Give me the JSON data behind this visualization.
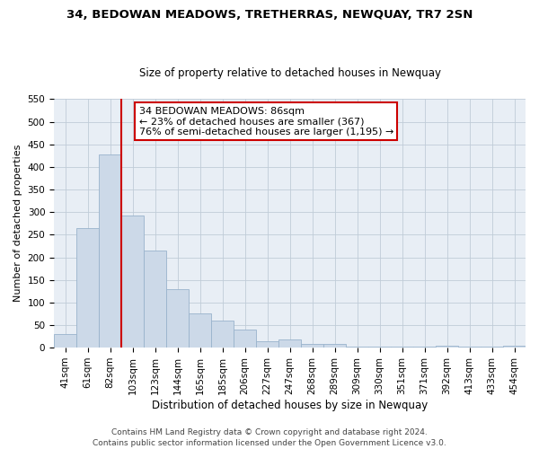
{
  "title": "34, BEDOWAN MEADOWS, TRETHERRAS, NEWQUAY, TR7 2SN",
  "subtitle": "Size of property relative to detached houses in Newquay",
  "xlabel": "Distribution of detached houses by size in Newquay",
  "ylabel": "Number of detached properties",
  "bar_labels": [
    "41sqm",
    "61sqm",
    "82sqm",
    "103sqm",
    "123sqm",
    "144sqm",
    "165sqm",
    "185sqm",
    "206sqm",
    "227sqm",
    "247sqm",
    "268sqm",
    "289sqm",
    "309sqm",
    "330sqm",
    "351sqm",
    "371sqm",
    "392sqm",
    "413sqm",
    "433sqm",
    "454sqm"
  ],
  "bar_values": [
    30,
    265,
    428,
    293,
    215,
    130,
    76,
    59,
    40,
    15,
    18,
    9,
    9,
    3,
    3,
    3,
    3,
    5,
    3,
    3,
    4
  ],
  "bar_color": "#ccd9e8",
  "bar_edge_color": "#99b3cc",
  "vline_x": 2.5,
  "vline_color": "#cc0000",
  "annotation_text": "34 BEDOWAN MEADOWS: 86sqm\n← 23% of detached houses are smaller (367)\n76% of semi-detached houses are larger (1,195) →",
  "annotation_box_color": "#ffffff",
  "annotation_box_edge_color": "#cc0000",
  "ylim": [
    0,
    550
  ],
  "yticks": [
    0,
    50,
    100,
    150,
    200,
    250,
    300,
    350,
    400,
    450,
    500,
    550
  ],
  "footer_line1": "Contains HM Land Registry data © Crown copyright and database right 2024.",
  "footer_line2": "Contains public sector information licensed under the Open Government Licence v3.0.",
  "background_color": "#ffffff",
  "plot_bg_color": "#e8eef5",
  "grid_color": "#c0ccd8",
  "title_fontsize": 9.5,
  "subtitle_fontsize": 8.5,
  "xlabel_fontsize": 8.5,
  "ylabel_fontsize": 8.0,
  "tick_fontsize": 7.5,
  "annot_fontsize": 8.0,
  "footer_fontsize": 6.5
}
